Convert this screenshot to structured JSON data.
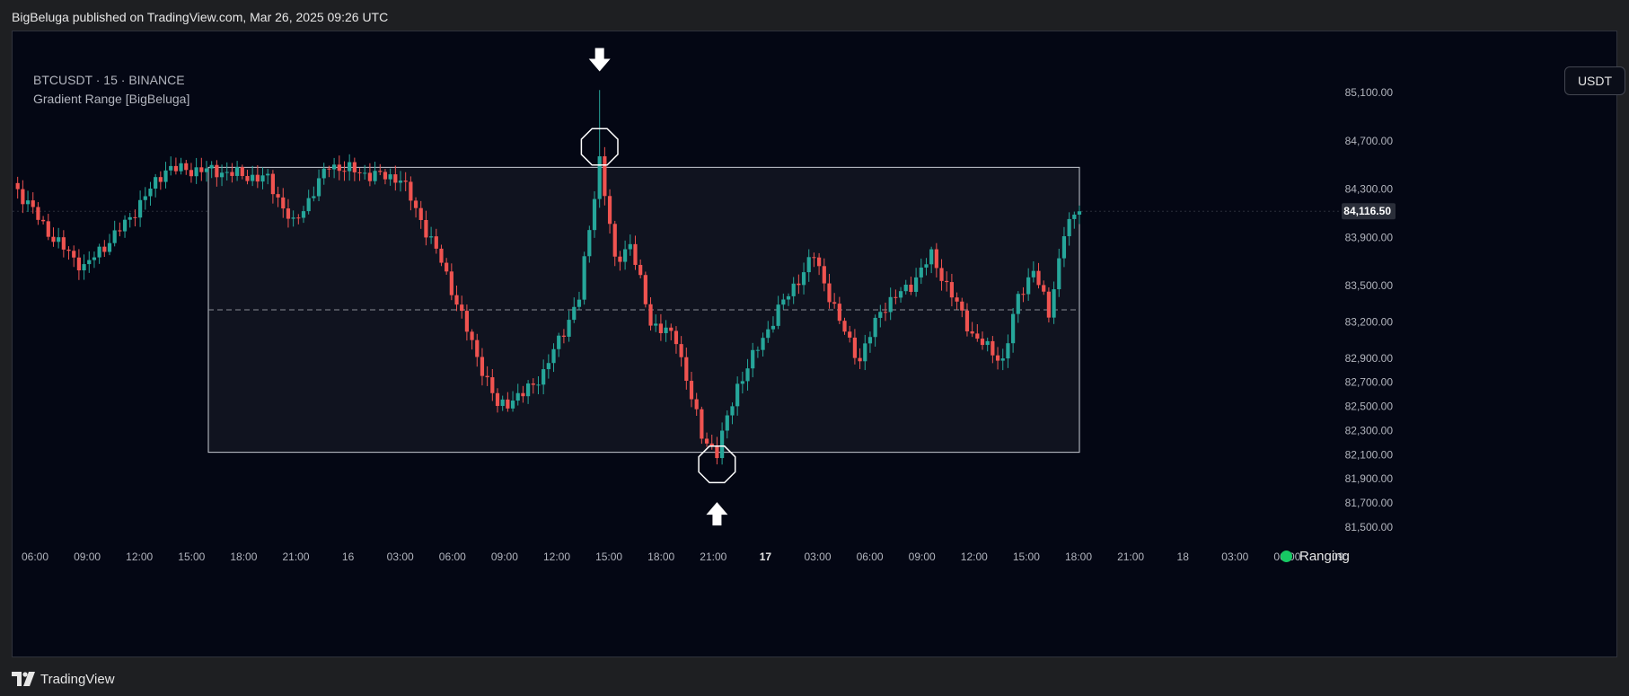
{
  "header": {
    "published": "BigBeluga published on TradingView.com, Mar 26, 2025 09:26 UTC"
  },
  "legend": {
    "symbol": "BTCUSDT · 15 · BINANCE",
    "indicator": "Gradient Range [BigBeluga]"
  },
  "currency_button": "USDT",
  "status": {
    "label": "Ranging",
    "color": "#17c964"
  },
  "footer": {
    "brand": "TradingView"
  },
  "colors": {
    "up": "#26a69a",
    "down": "#ef5350",
    "background": "#040714",
    "range_box": "#c9ccd4"
  },
  "chart_data": {
    "type": "candlestick",
    "title": "BTCUSDT · 15 · BINANCE",
    "symbol": "BTCUSDT",
    "interval": "15",
    "exchange": "BINANCE",
    "price_ticks": [
      85100,
      84700,
      84300,
      83900,
      83500,
      83200,
      82900,
      82700,
      82500,
      82300,
      82100,
      81900,
      81700,
      81500
    ],
    "price_tick_labels": [
      "85,100.00",
      "84,700.00",
      "84,300.00",
      "83,900.00",
      "83,500.00",
      "83,200.00",
      "82,900.00",
      "82,700.00",
      "82,500.00",
      "82,300.00",
      "82,100.00",
      "81,900.00",
      "81,700.00",
      "81,500.00"
    ],
    "time_labels": [
      "06:00",
      "09:00",
      "12:00",
      "15:00",
      "18:00",
      "21:00",
      "16",
      "03:00",
      "06:00",
      "09:00",
      "12:00",
      "15:00",
      "18:00",
      "21:00",
      "17",
      "03:00",
      "06:00",
      "09:00",
      "12:00",
      "15:00",
      "18:00",
      "21:00",
      "18",
      "03:00",
      "06:00",
      "09:"
    ],
    "bold_time_labels": [
      "17"
    ],
    "last_price": 84116.5,
    "last_price_label": "84,116.50",
    "range": {
      "top": 84480,
      "bottom": 82120,
      "mid": 83300,
      "start": "16:00",
      "end": "18:00"
    },
    "markers": [
      {
        "type": "high",
        "price": 84650,
        "arrow": "down"
      },
      {
        "type": "low",
        "price": 82020,
        "arrow": "up"
      }
    ],
    "anchors": [
      [
        0,
        84350
      ],
      [
        8,
        83890
      ],
      [
        14,
        83650
      ],
      [
        22,
        84010
      ],
      [
        30,
        84470
      ],
      [
        40,
        84450
      ],
      [
        50,
        84380
      ],
      [
        55,
        84000
      ],
      [
        62,
        84500
      ],
      [
        70,
        84420
      ],
      [
        76,
        84390
      ],
      [
        84,
        83700
      ],
      [
        90,
        83020
      ],
      [
        95,
        82500
      ],
      [
        100,
        82600
      ],
      [
        104,
        82780
      ],
      [
        111,
        83400
      ],
      [
        115,
        84550
      ],
      [
        118,
        83700
      ],
      [
        121,
        83850
      ],
      [
        125,
        83200
      ],
      [
        130,
        83060
      ],
      [
        135,
        82250
      ],
      [
        138,
        82120
      ],
      [
        142,
        82670
      ],
      [
        150,
        83300
      ],
      [
        157,
        83750
      ],
      [
        162,
        83200
      ],
      [
        166,
        82880
      ],
      [
        170,
        83300
      ],
      [
        176,
        83510
      ],
      [
        180,
        83750
      ],
      [
        184,
        83420
      ],
      [
        188,
        83100
      ],
      [
        191,
        82980
      ],
      [
        194,
        82880
      ],
      [
        197,
        83400
      ],
      [
        200,
        83640
      ],
      [
        203,
        83260
      ],
      [
        206,
        83950
      ],
      [
        209,
        84116.5
      ]
    ]
  }
}
